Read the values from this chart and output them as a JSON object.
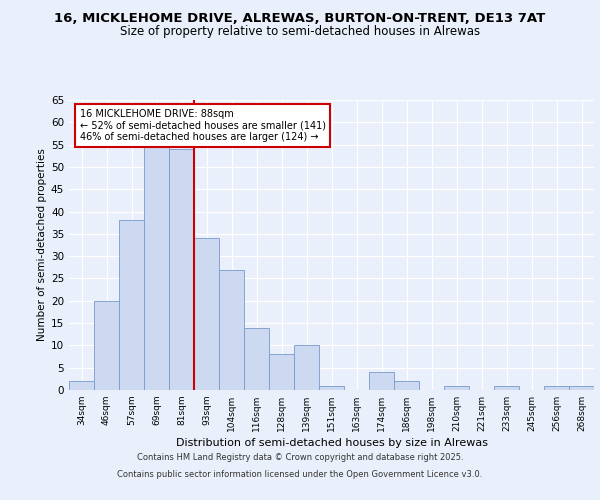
{
  "title_line1": "16, MICKLEHOME DRIVE, ALREWAS, BURTON-ON-TRENT, DE13 7AT",
  "title_line2": "Size of property relative to semi-detached houses in Alrewas",
  "xlabel": "Distribution of semi-detached houses by size in Alrewas",
  "ylabel": "Number of semi-detached properties",
  "bar_labels": [
    "34sqm",
    "46sqm",
    "57sqm",
    "69sqm",
    "81sqm",
    "93sqm",
    "104sqm",
    "116sqm",
    "128sqm",
    "139sqm",
    "151sqm",
    "163sqm",
    "174sqm",
    "186sqm",
    "198sqm",
    "210sqm",
    "221sqm",
    "233sqm",
    "245sqm",
    "256sqm",
    "268sqm"
  ],
  "bar_values": [
    2,
    20,
    38,
    55,
    54,
    34,
    27,
    14,
    8,
    10,
    1,
    0,
    4,
    2,
    0,
    1,
    0,
    1,
    0,
    1,
    1
  ],
  "bar_color": "#ccd9f0",
  "bar_edge_color": "#7799cc",
  "vline_color": "#cc0000",
  "vline_x_index": 4.5,
  "annotation_title": "16 MICKLEHOME DRIVE: 88sqm",
  "annotation_line1": "← 52% of semi-detached houses are smaller (141)",
  "annotation_line2": "46% of semi-detached houses are larger (124) →",
  "annotation_box_color": "#ffffff",
  "annotation_border_color": "#cc0000",
  "ylim": [
    0,
    65
  ],
  "yticks": [
    0,
    5,
    10,
    15,
    20,
    25,
    30,
    35,
    40,
    45,
    50,
    55,
    60,
    65
  ],
  "footer_line1": "Contains HM Land Registry data © Crown copyright and database right 2025.",
  "footer_line2": "Contains public sector information licensed under the Open Government Licence v3.0.",
  "bg_color": "#eaf0fb",
  "grid_color": "#ffffff"
}
